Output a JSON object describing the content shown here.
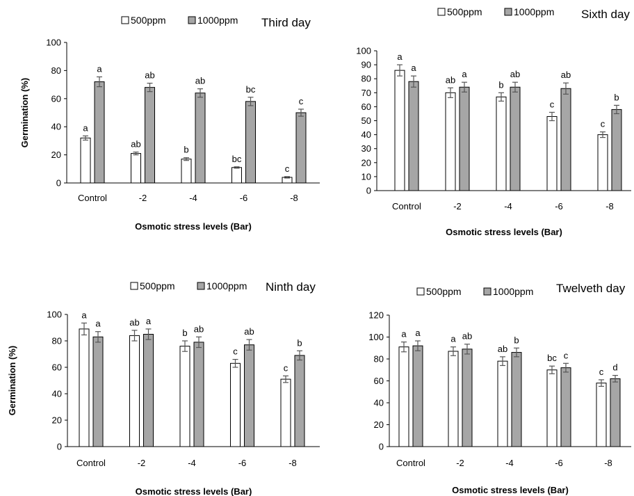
{
  "colors": {
    "series_500": "#ffffff",
    "series_1000": "#a6a6a6",
    "stroke": "#000000",
    "error_bar": "#555555"
  },
  "chart_data": [
    {
      "type": "bar",
      "title": "Third day",
      "xlabel": "Osmotic stress levels (Bar)",
      "ylabel": "Germination (%)",
      "categories": [
        "Control",
        "-2",
        "-4",
        "-6",
        "-8"
      ],
      "ylim": [
        0,
        100
      ],
      "yticks": [
        0,
        20,
        40,
        60,
        80,
        100
      ],
      "legend": "top",
      "series": [
        {
          "name": "500ppm",
          "values": [
            32,
            21,
            17,
            11,
            4
          ],
          "errors": [
            1.5,
            1,
            1,
            0.5,
            0.5
          ],
          "letters": [
            "a",
            "ab",
            "b",
            "bc",
            "c"
          ]
        },
        {
          "name": "1000ppm",
          "values": [
            72,
            68,
            64,
            58,
            50
          ],
          "errors": [
            3.5,
            3,
            3,
            3,
            2.5
          ],
          "letters": [
            "a",
            "ab",
            "ab",
            "bc",
            "c"
          ]
        }
      ]
    },
    {
      "type": "bar",
      "title": "Sixth day",
      "xlabel": "Osmotic stress levels (Bar)",
      "ylabel": "",
      "categories": [
        "Control",
        "-2",
        "-4",
        "-6",
        "-8"
      ],
      "ylim": [
        0,
        100
      ],
      "yticks": [
        0,
        10,
        20,
        30,
        40,
        50,
        60,
        70,
        80,
        90,
        100
      ],
      "legend": "top",
      "series": [
        {
          "name": "500ppm",
          "values": [
            86,
            70,
            67,
            53,
            40
          ],
          "errors": [
            4,
            3.5,
            3,
            3,
            2
          ],
          "letters": [
            "a",
            "ab",
            "b",
            "c",
            "c"
          ]
        },
        {
          "name": "1000ppm",
          "values": [
            78,
            74,
            74,
            73,
            58
          ],
          "errors": [
            4,
            3.5,
            3.5,
            4,
            3
          ],
          "letters": [
            "a",
            "a",
            "ab",
            "ab",
            "b"
          ]
        }
      ]
    },
    {
      "type": "bar",
      "title": "Ninth day",
      "xlabel": "Osmotic stress levels (Bar)",
      "ylabel": "Germination (%)",
      "categories": [
        "Control",
        "-2",
        "-4",
        "-6",
        "-8"
      ],
      "ylim": [
        0,
        100
      ],
      "yticks": [
        0,
        20,
        40,
        60,
        80,
        100
      ],
      "legend": "top",
      "series": [
        {
          "name": "500ppm",
          "values": [
            89,
            84,
            76,
            63,
            51
          ],
          "errors": [
            4.5,
            4,
            4,
            3,
            2.5
          ],
          "letters": [
            "a",
            "ab",
            "b",
            "c",
            "c"
          ]
        },
        {
          "name": "1000ppm",
          "values": [
            83,
            85,
            79,
            77,
            69
          ],
          "errors": [
            4,
            4,
            4,
            4,
            3.5
          ],
          "letters": [
            "a",
            "a",
            "ab",
            "ab",
            "b"
          ]
        }
      ]
    },
    {
      "type": "bar",
      "title": "Twelveth day",
      "xlabel": "Osmotic stress levels (Bar)",
      "ylabel": "",
      "categories": [
        "Control",
        "-2",
        "-4",
        "-6",
        "-8"
      ],
      "ylim": [
        0,
        120
      ],
      "yticks": [
        0,
        20,
        40,
        60,
        80,
        100,
        120
      ],
      "legend": "top",
      "series": [
        {
          "name": "500ppm",
          "values": [
            91,
            87,
            78,
            70,
            58
          ],
          "errors": [
            4.5,
            4,
            4,
            3.5,
            3
          ],
          "letters": [
            "a",
            "a",
            "ab",
            "bc",
            "c"
          ]
        },
        {
          "name": "1000ppm",
          "values": [
            92,
            89,
            86,
            72,
            62
          ],
          "errors": [
            4.5,
            4.5,
            4,
            4,
            3
          ],
          "letters": [
            "a",
            "ab",
            "b",
            "c",
            "d"
          ]
        }
      ]
    }
  ]
}
